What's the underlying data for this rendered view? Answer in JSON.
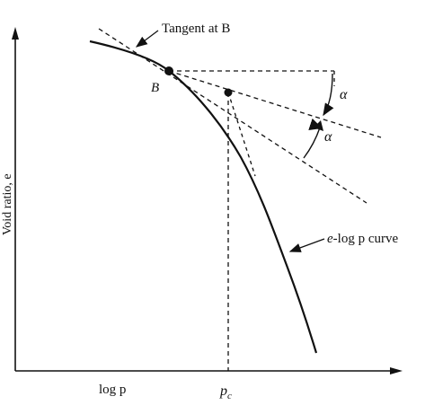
{
  "diagram": {
    "axes": {
      "y_label": "Void ratio, e",
      "x_label": "log p",
      "pc_label": "p",
      "pc_subscript": "c"
    },
    "labels": {
      "tangent_label": "Tangent at B",
      "tangent_label_italic_part": "B",
      "point_b": "B",
      "alpha_upper": "α",
      "alpha_lower": "α",
      "curve_label_prefix": "e",
      "curve_label_suffix": "-log p curve"
    },
    "colors": {
      "ink": "#111111",
      "background": "#ffffff"
    }
  }
}
